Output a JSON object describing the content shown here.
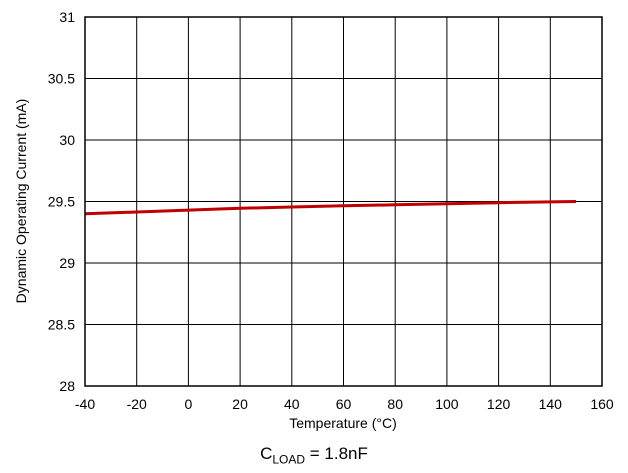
{
  "chart_data": {
    "type": "line",
    "title": "",
    "xlabel": "Temperature (°C)",
    "ylabel": "Dynamic Operating Current (mA)",
    "xlim": [
      -40,
      160
    ],
    "ylim": [
      28,
      31
    ],
    "x_ticks": [
      "-40",
      "-20",
      "0",
      "20",
      "40",
      "60",
      "80",
      "100",
      "120",
      "140",
      "160"
    ],
    "y_ticks": [
      "28",
      "28.5",
      "29",
      "29.5",
      "30",
      "30.5",
      "31"
    ],
    "grid": true,
    "series": [
      {
        "color": "#c00000",
        "x": [
          -40,
          -20,
          0,
          20,
          40,
          60,
          80,
          100,
          120,
          140,
          150
        ],
        "y": [
          29.4,
          29.415,
          29.43,
          29.445,
          29.455,
          29.465,
          29.473,
          29.482,
          29.49,
          29.497,
          29.5
        ]
      }
    ]
  },
  "caption": {
    "prefix": "C",
    "subscript": "LOAD",
    "suffix": " = 1.8nF"
  }
}
